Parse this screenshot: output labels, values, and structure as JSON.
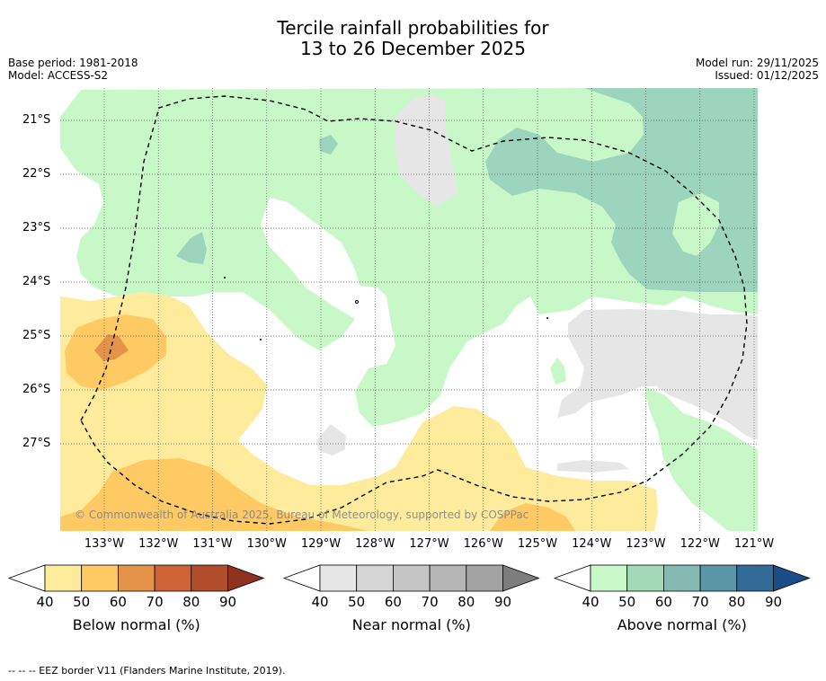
{
  "title_line1": "Tercile rainfall probabilities for",
  "title_line2": "13 to 26 December 2025",
  "base_period": "Base period: 1981-2018",
  "model": "Model: ACCESS-S2",
  "model_run": "Model run: 29/11/2025",
  "issued": "Issued: 01/12/2025",
  "copyright": "© Commonwealth of Australia 2025, Bureau of Meteorology, supported by COSPPac",
  "footnote": "-- -- -- EEZ border V11 (Flanders Marine Institute, 2019).",
  "latitudes": [
    "21°S",
    "22°S",
    "23°S",
    "24°S",
    "25°S",
    "26°S",
    "27°S"
  ],
  "longitudes": [
    "133°W",
    "132°W",
    "131°W",
    "130°W",
    "129°W",
    "128°W",
    "127°W",
    "126°W",
    "125°W",
    "124°W",
    "123°W",
    "122°W",
    "121°W"
  ],
  "colorbars": [
    {
      "label": "Below normal (%)",
      "ticks": [
        "40",
        "50",
        "60",
        "70",
        "80",
        "90"
      ],
      "colors": [
        "#ffffff",
        "#ffeb9c",
        "#ffc964",
        "#e39449",
        "#cd6336",
        "#b04e2c",
        "#8f321f"
      ]
    },
    {
      "label": "Near normal (%)",
      "ticks": [
        "40",
        "50",
        "60",
        "70",
        "80",
        "90"
      ],
      "colors": [
        "#ffffff",
        "#e6e6e6",
        "#d5d5d5",
        "#c5c5c5",
        "#b5b5b5",
        "#a3a3a3",
        "#7d7d7d"
      ]
    },
    {
      "label": "Above normal (%)",
      "ticks": [
        "40",
        "50",
        "60",
        "70",
        "80",
        "90"
      ],
      "colors": [
        "#ffffff",
        "#c8f8c8",
        "#a3d9b5",
        "#84bab1",
        "#5b96a6",
        "#326a98",
        "#1a4c87"
      ]
    }
  ],
  "map_colors": {
    "below_50": "#ffeb9c",
    "below_60": "#ffc964",
    "below_70": "#e39449",
    "near_50": "#e6e6e6",
    "above_50": "#c8f8c8",
    "above_60": "#9dd4bd"
  }
}
